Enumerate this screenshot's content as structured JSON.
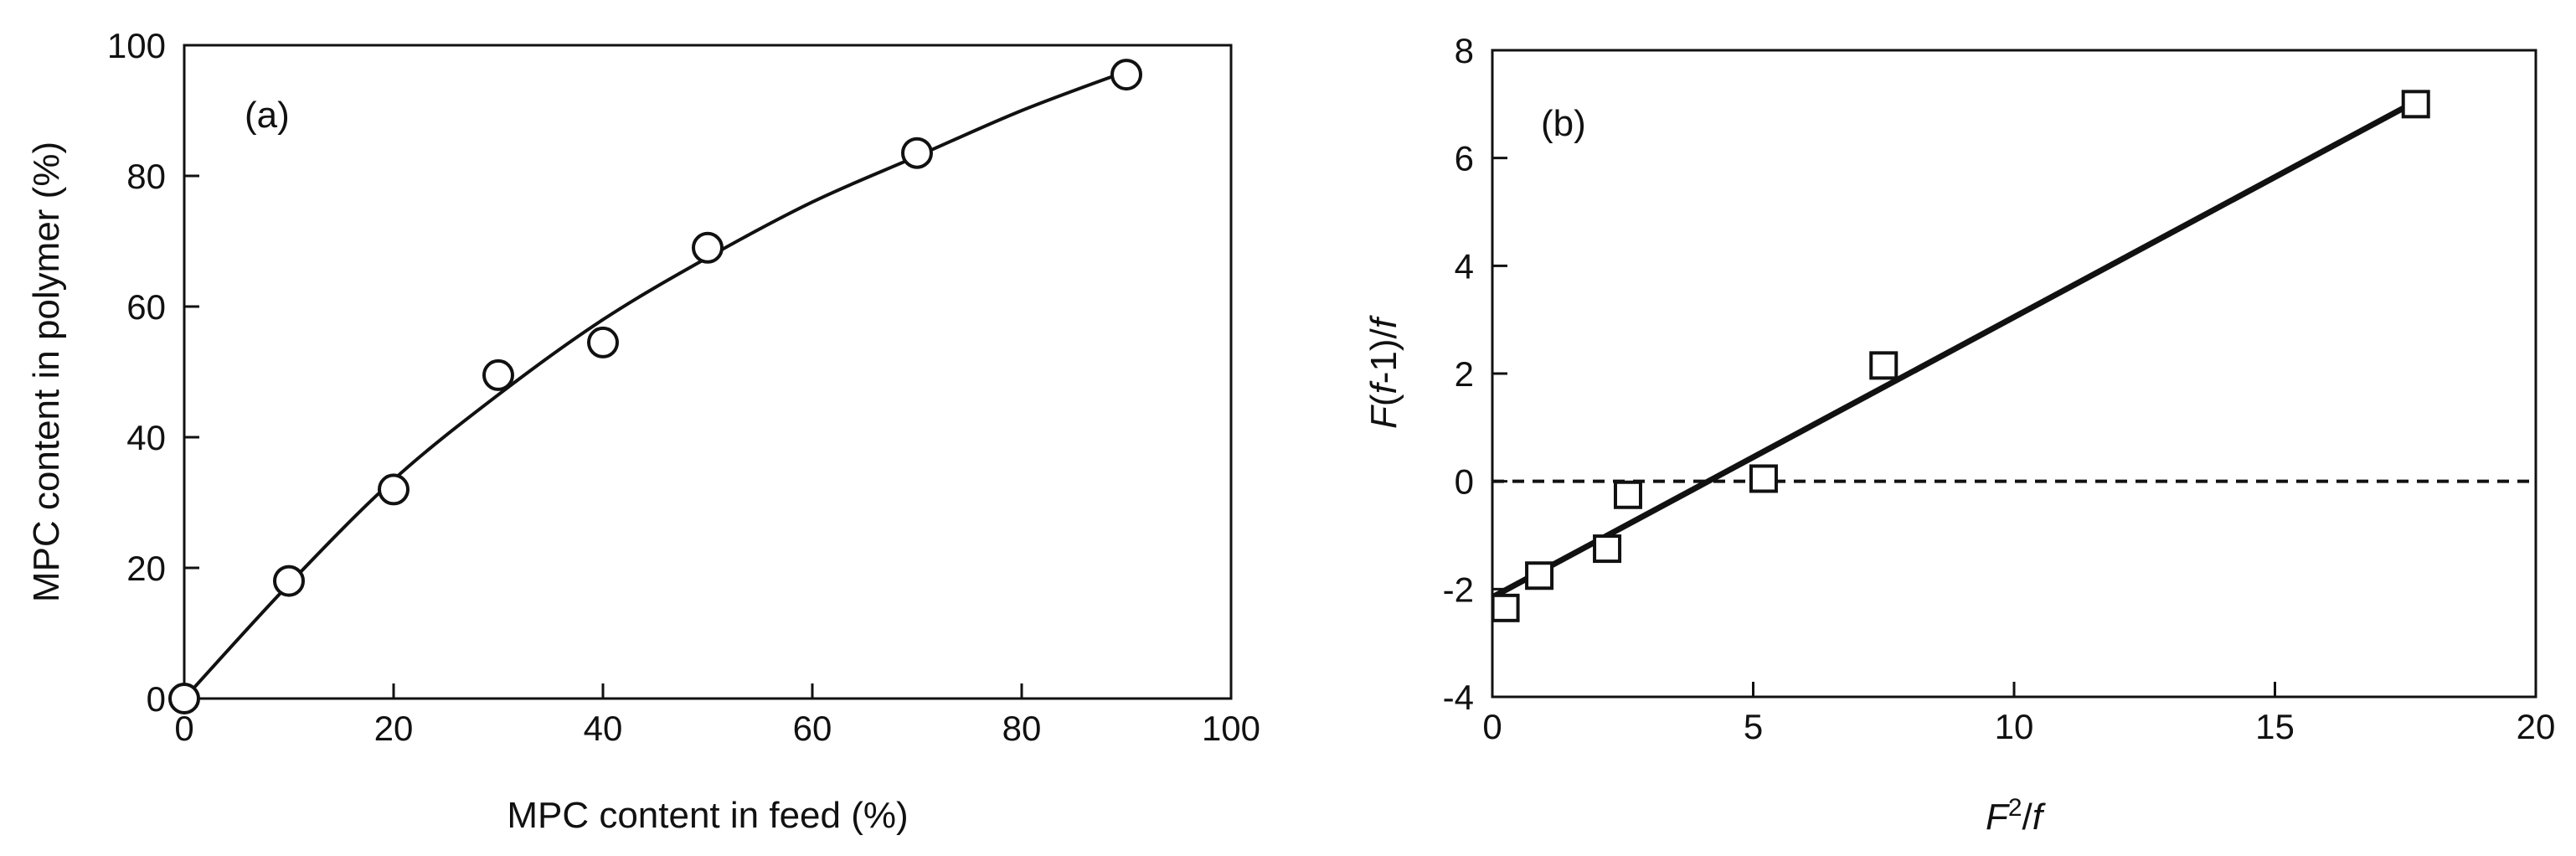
{
  "figure": {
    "colors": {
      "ink": "#111111",
      "background": "#ffffff"
    }
  },
  "chart_data": [
    {
      "type": "scatter",
      "panel_label": "(a)",
      "xlabel": "MPC content in feed (%)",
      "ylabel": "MPC content in polymer (%)",
      "xlim": [
        0,
        100
      ],
      "ylim": [
        0,
        100
      ],
      "x_ticks": [
        0,
        20,
        40,
        60,
        80,
        100
      ],
      "y_ticks": [
        0,
        20,
        40,
        60,
        80,
        100
      ],
      "x_tick_labels": [
        "0",
        "20",
        "40",
        "60",
        "80",
        "100"
      ],
      "y_tick_labels": [
        "0",
        "20",
        "40",
        "60",
        "80",
        "100"
      ],
      "marker": "open-circle",
      "series": [
        {
          "name": "data",
          "x": [
            0,
            10,
            20,
            30,
            40,
            50,
            70,
            90
          ],
          "y": [
            0,
            18,
            32,
            49.5,
            54.5,
            69,
            83.5,
            95.5
          ]
        }
      ],
      "fit_curve": {
        "style": "solid",
        "x": [
          0,
          10,
          20,
          30,
          40,
          50,
          60,
          70,
          80,
          90
        ],
        "y": [
          0,
          17.5,
          33.5,
          46.5,
          58,
          67.5,
          76,
          83,
          90,
          96
        ]
      }
    },
    {
      "type": "scatter",
      "panel_label": "(b)",
      "xlabel": "F²/f",
      "ylabel": "F(f-1)/f",
      "xlim": [
        0,
        20
      ],
      "ylim": [
        -4,
        8
      ],
      "x_ticks": [
        0,
        5,
        10,
        15,
        20
      ],
      "y_ticks": [
        -4,
        -2,
        0,
        2,
        4,
        6,
        8
      ],
      "x_tick_labels": [
        "0",
        "5",
        "10",
        "15",
        "20"
      ],
      "y_tick_labels": [
        "-4",
        "-2",
        "0",
        "2",
        "4",
        "6",
        "8"
      ],
      "marker": "open-square",
      "series": [
        {
          "name": "data",
          "x": [
            0.25,
            0.9,
            2.2,
            2.6,
            5.2,
            7.5,
            17.7
          ],
          "y": [
            -2.35,
            -1.75,
            -1.25,
            -0.25,
            0.05,
            2.15,
            7.0
          ]
        }
      ],
      "fit_line": {
        "style": "solid-thick",
        "x": [
          0,
          17.7
        ],
        "y": [
          -2.15,
          7.05
        ]
      },
      "reference_line": {
        "style": "dashed",
        "y": 0
      }
    }
  ]
}
